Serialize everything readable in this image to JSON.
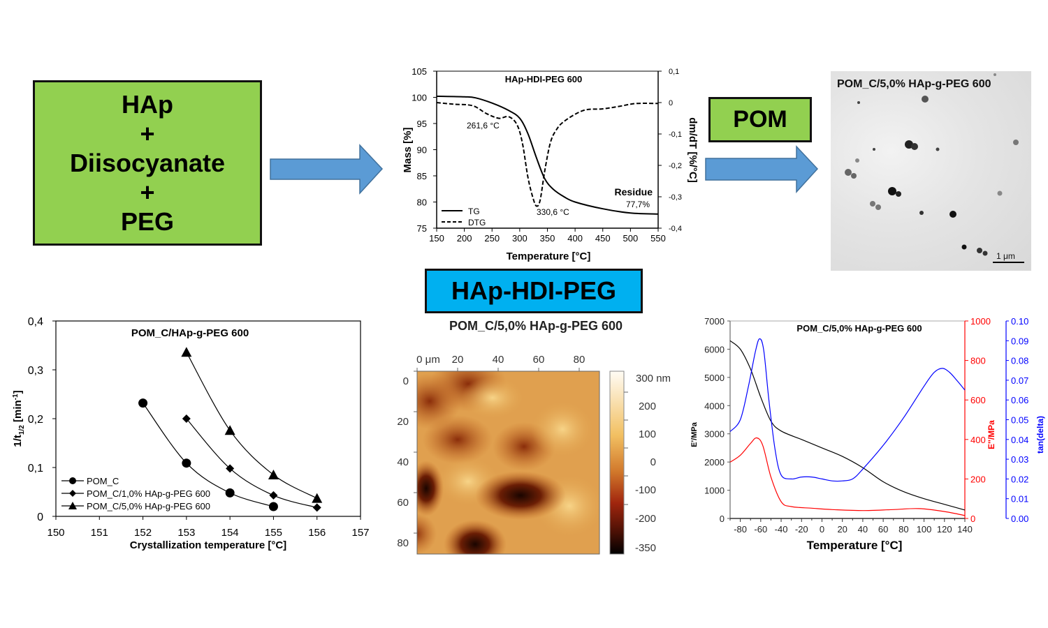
{
  "reactants_box": {
    "lines": [
      "HAp",
      "+",
      "Diisocyanate",
      "+",
      "PEG"
    ],
    "color": "#92d050"
  },
  "pom_box": {
    "label": "POM",
    "color": "#92d050"
  },
  "product_box": {
    "label": "HAp-HDI-PEG",
    "color": "#00b0f0"
  },
  "arrow_color": "#5b9bd5",
  "tem_image": {
    "title": "POM_C/5,0% HAp-g-PEG 600",
    "scale_bar": "1 μm"
  },
  "afm_image": {
    "title": "POM_C/5,0% HAp-g-PEG 600",
    "x_ticks": [
      "0 μm",
      "20",
      "40",
      "60",
      "80"
    ],
    "y_ticks": [
      "0",
      "20",
      "40",
      "60",
      "80"
    ],
    "colorbar_ticks": [
      "300 nm",
      "200",
      "100",
      "0",
      "-100",
      "-200",
      "-350"
    ]
  },
  "chart_data": [
    {
      "type": "line",
      "title": "HAp-HDI-PEG 600",
      "xlabel": "Temperature [°C]",
      "ylabel": "Mass [%]",
      "y2label": "dm/dT [%/°C]",
      "xlim": [
        150,
        550
      ],
      "ylim": [
        75,
        105
      ],
      "y2lim": [
        -0.4,
        0.1
      ],
      "x_ticks": [
        "150",
        "200",
        "250",
        "300",
        "350",
        "400",
        "450",
        "500",
        "550"
      ],
      "y_ticks": [
        "75",
        "80",
        "85",
        "90",
        "95",
        "100",
        "105"
      ],
      "y2_ticks": [
        "-0,4",
        "-0,3",
        "-0,2",
        "-0,1",
        "0",
        "0,1"
      ],
      "series": [
        {
          "name": "TG",
          "axis": "left",
          "style": "solid",
          "x": [
            150,
            200,
            220,
            250,
            280,
            300,
            315,
            330,
            345,
            360,
            380,
            400,
            450,
            500,
            550
          ],
          "y": [
            100.2,
            100.1,
            99.9,
            98.9,
            97.5,
            96.0,
            93.0,
            88.5,
            84.5,
            82.5,
            81.0,
            80.0,
            78.7,
            77.9,
            77.7
          ]
        },
        {
          "name": "DTG",
          "axis": "right",
          "style": "dashed",
          "x": [
            150,
            180,
            215,
            240,
            262,
            280,
            295,
            305,
            315,
            325,
            331,
            337,
            345,
            355,
            365,
            380,
            415,
            450,
            480,
            510,
            550
          ],
          "y": [
            0.0,
            -0.005,
            -0.01,
            -0.035,
            -0.05,
            -0.045,
            -0.07,
            -0.13,
            -0.24,
            -0.31,
            -0.33,
            -0.31,
            -0.22,
            -0.13,
            -0.09,
            -0.06,
            -0.025,
            -0.02,
            -0.012,
            -0.003,
            -0.003
          ]
        }
      ],
      "annotations": [
        "261,6 °C",
        "330,6 °C",
        "Residue",
        "77,7%"
      ],
      "legend": [
        "TG",
        "DTG"
      ],
      "legend_position": "bottom-left"
    },
    {
      "type": "line",
      "title": "POM_C/HAp-g-PEG 600",
      "xlabel": "Crystallization temperature [°C]",
      "ylabel": "1/t1/2 [min-1]",
      "xlim": [
        150,
        157
      ],
      "ylim": [
        0,
        0.4
      ],
      "x_ticks": [
        "150",
        "151",
        "152",
        "153",
        "154",
        "155",
        "156",
        "157"
      ],
      "y_ticks": [
        "0",
        "0,1",
        "0,2",
        "0,3",
        "0,4"
      ],
      "series": [
        {
          "name": "POM_C",
          "marker": "circle",
          "x": [
            152,
            153,
            154,
            155
          ],
          "y": [
            0.232,
            0.109,
            0.048,
            0.02
          ]
        },
        {
          "name": "POM_C/1,0% HAp-g-PEG  600",
          "marker": "diamond",
          "x": [
            153,
            154,
            155,
            156
          ],
          "y": [
            0.2,
            0.098,
            0.043,
            0.018
          ]
        },
        {
          "name": "POM_C/5,0% HAp-g-PEG  600",
          "marker": "triangle",
          "x": [
            153,
            154,
            155,
            156
          ],
          "y": [
            0.336,
            0.176,
            0.085,
            0.037
          ]
        }
      ],
      "legend_position": "bottom-left"
    },
    {
      "type": "line",
      "title": "POM_C/5,0% HAp-g-PEG 600",
      "xlabel": "Temperature [°C]",
      "ylabel": "E'/MPa",
      "y2label": "E''/MPa",
      "y3label": "tan(delta)",
      "xlim": [
        -90,
        140
      ],
      "ylim": [
        0,
        7000
      ],
      "y2lim": [
        0,
        1000
      ],
      "y3lim": [
        0,
        0.1
      ],
      "x_ticks": [
        "-80",
        "-60",
        "-40",
        "-20",
        "0",
        "20",
        "40",
        "60",
        "80",
        "100",
        "120",
        "140"
      ],
      "y_ticks": [
        "0",
        "1000",
        "2000",
        "3000",
        "4000",
        "5000",
        "6000",
        "7000"
      ],
      "y2_ticks": [
        "0",
        "200",
        "400",
        "600",
        "800",
        "1000"
      ],
      "y3_ticks": [
        "0.00",
        "0.01",
        "0.02",
        "0.03",
        "0.04",
        "0.05",
        "0.06",
        "0.07",
        "0.08",
        "0.09",
        "0.10"
      ],
      "colors": {
        "storage": "#000000",
        "loss": "#ff0000",
        "tan": "#0000ff"
      },
      "series": [
        {
          "name": "E'",
          "axis": "left",
          "color": "#000000",
          "x": [
            -90,
            -80,
            -70,
            -60,
            -50,
            -40,
            -20,
            0,
            20,
            40,
            60,
            80,
            100,
            120,
            140
          ],
          "y": [
            6300,
            6000,
            5300,
            4300,
            3450,
            3100,
            2800,
            2500,
            2200,
            1800,
            1300,
            950,
            700,
            500,
            300
          ]
        },
        {
          "name": "E''",
          "axis": "right",
          "color": "#ff0000",
          "x": [
            -90,
            -80,
            -70,
            -64,
            -58,
            -50,
            -40,
            -30,
            -10,
            10,
            40,
            70,
            95,
            120,
            140
          ],
          "y": [
            285,
            320,
            380,
            408,
            370,
            210,
            85,
            60,
            52,
            45,
            40,
            45,
            50,
            35,
            15
          ]
        },
        {
          "name": "tan(delta)",
          "axis": "right2",
          "color": "#0000ff",
          "x": [
            -90,
            -80,
            -72,
            -65,
            -61,
            -57,
            -52,
            -46,
            -40,
            -30,
            -20,
            -10,
            0,
            10,
            20,
            30,
            40,
            60,
            80,
            100,
            110,
            118,
            125,
            132,
            140
          ],
          "y": [
            0.044,
            0.05,
            0.067,
            0.085,
            0.091,
            0.085,
            0.06,
            0.035,
            0.022,
            0.02,
            0.021,
            0.021,
            0.02,
            0.019,
            0.019,
            0.02,
            0.025,
            0.037,
            0.051,
            0.067,
            0.074,
            0.076,
            0.074,
            0.07,
            0.065
          ]
        }
      ]
    }
  ]
}
